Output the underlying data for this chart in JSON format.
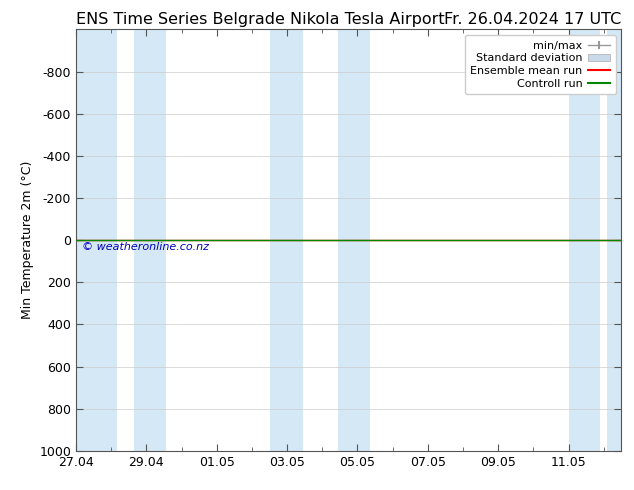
{
  "title_left": "ENS Time Series Belgrade Nikola Tesla Airport",
  "title_right": "Fr. 26.04.2024 17 UTC",
  "ylabel": "Min Temperature 2m (°C)",
  "ylim_bottom": 1000,
  "ylim_top": -1000,
  "yticks": [
    -800,
    -600,
    -400,
    -200,
    0,
    200,
    400,
    600,
    800,
    1000
  ],
  "xtick_labels": [
    "27.04",
    "29.04",
    "01.05",
    "03.05",
    "05.05",
    "07.05",
    "09.05",
    "11.05"
  ],
  "xtick_positions": [
    0,
    2,
    4,
    6,
    8,
    10,
    12,
    14
  ],
  "xlim": [
    0,
    15.5
  ],
  "background_color": "#ffffff",
  "plot_bg_color": "#ffffff",
  "shaded_bands": [
    [
      0.0,
      1.15
    ],
    [
      1.65,
      2.55
    ],
    [
      5.5,
      6.45
    ],
    [
      7.45,
      8.35
    ],
    [
      14.0,
      14.9
    ],
    [
      15.1,
      15.5
    ]
  ],
  "shaded_color": "#d5e8f5",
  "flat_line_color_red": "#ff0000",
  "flat_line_color_green": "#008800",
  "watermark": "© weatheronline.co.nz",
  "watermark_color": "#0000bb",
  "legend_labels": [
    "min/max",
    "Standard deviation",
    "Ensemble mean run",
    "Controll run"
  ],
  "legend_minmax_color": "#999999",
  "legend_std_color": "#c8daea",
  "legend_ens_color": "#ff0000",
  "legend_ctrl_color": "#008800",
  "title_fontsize": 11.5,
  "label_fontsize": 9,
  "tick_fontsize": 9,
  "legend_fontsize": 8
}
